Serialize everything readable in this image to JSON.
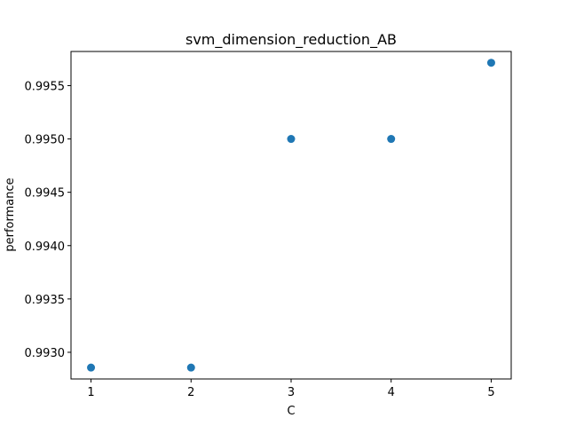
{
  "chart_data": {
    "type": "scatter",
    "title": "svm_dimension_reduction_AB",
    "xlabel": "C",
    "ylabel": "performance",
    "x": [
      1,
      2,
      3,
      4,
      5
    ],
    "y": [
      0.992857,
      0.992857,
      0.995,
      0.995,
      0.995714
    ],
    "xlim": [
      0.8,
      5.2
    ],
    "ylim": [
      0.99275,
      0.99582
    ],
    "xticks": [
      1,
      2,
      3,
      4,
      5
    ],
    "xtick_labels": [
      "1",
      "2",
      "3",
      "4",
      "5"
    ],
    "yticks": [
      0.993,
      0.9935,
      0.994,
      0.9945,
      0.995,
      0.9955
    ],
    "ytick_labels": [
      "0.9930",
      "0.9935",
      "0.9940",
      "0.9945",
      "0.9950",
      "0.9955"
    ],
    "grid": false,
    "legend": "none",
    "colors": {
      "marker": "#1f77b4",
      "axes": "#000000",
      "background": "#ffffff"
    }
  }
}
